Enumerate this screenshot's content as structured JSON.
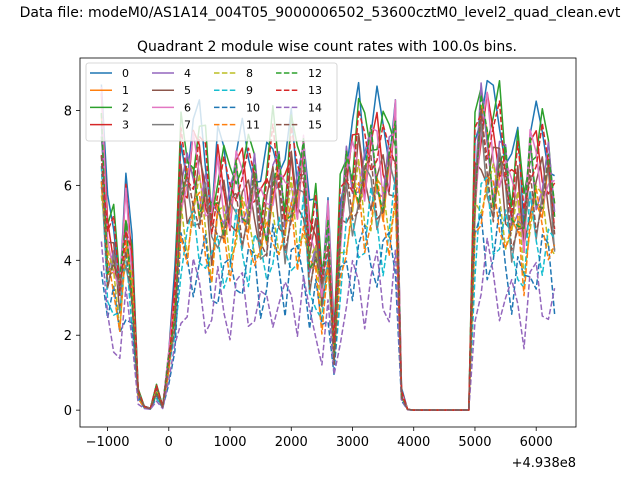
{
  "chart_data": {
    "type": "line",
    "suptitle": "Data file: modeM0/AS1A14_004T05_9000006502_53600cztM0_level2_quad_clean.evt",
    "title": "Quadrant 2 module wise count rates with 100.0s bins.",
    "xlabel": "",
    "ylabel": "",
    "offset_text": "+4.938e8",
    "xlim": [
      -1450,
      6650
    ],
    "ylim": [
      -0.45,
      9.4
    ],
    "xticks": [
      -1000,
      0,
      1000,
      2000,
      3000,
      4000,
      5000,
      6000
    ],
    "xtick_labels": [
      "−1000",
      "0",
      "1000",
      "2000",
      "3000",
      "4000",
      "5000",
      "6000"
    ],
    "yticks": [
      0,
      2,
      4,
      6,
      8
    ],
    "ytick_labels": [
      "0",
      "2",
      "4",
      "6",
      "8"
    ],
    "legend": {
      "placement": "top-left",
      "columns": 4
    },
    "x": [
      -1100,
      -1000,
      -900,
      -800,
      -700,
      -600,
      -500,
      -400,
      -300,
      -200,
      -100,
      0,
      100,
      200,
      300,
      400,
      500,
      600,
      700,
      800,
      900,
      1000,
      1100,
      1200,
      1300,
      1400,
      1500,
      1600,
      1700,
      1800,
      1900,
      2000,
      2100,
      2200,
      2300,
      2400,
      2500,
      2600,
      2700,
      2800,
      2900,
      3000,
      3100,
      3200,
      3300,
      3400,
      3500,
      3600,
      3700,
      3800,
      3900,
      4000,
      4100,
      4200,
      4300,
      4400,
      4500,
      4600,
      4700,
      4800,
      4900,
      5000,
      5100,
      5200,
      5300,
      5400,
      5500,
      5600,
      5700,
      5800,
      5900,
      6000,
      6100,
      6200,
      6300
    ],
    "base_profile": [
      8.2,
      4.8,
      4.7,
      3.5,
      5.6,
      4.0,
      0.5,
      0.1,
      0.05,
      0.6,
      0.1,
      1.5,
      3.2,
      6.8,
      6.6,
      7.0,
      7.0,
      6.6,
      5.4,
      6.5,
      6.2,
      5.9,
      6.7,
      6.5,
      6.3,
      6.6,
      5.6,
      6.0,
      7.0,
      6.7,
      5.8,
      7.0,
      6.3,
      7.2,
      4.7,
      5.2,
      3.5,
      5.3,
      1.8,
      5.4,
      6.8,
      6.8,
      7.5,
      7.0,
      7.5,
      7.3,
      6.9,
      7.1,
      7.9,
      0.5,
      0.02,
      0.0,
      0.0,
      0.0,
      0.0,
      0.0,
      0.0,
      0.0,
      0.0,
      0.0,
      0.0,
      6.8,
      8.4,
      8.0,
      7.3,
      7.6,
      6.9,
      5.9,
      6.6,
      5.2,
      7.3,
      6.9,
      6.9,
      6.9,
      5.8
    ],
    "series": [
      {
        "name": "0",
        "color": "#1f77b4",
        "style": "solid",
        "scale": 1.06
      },
      {
        "name": "1",
        "color": "#ff7f0e",
        "style": "solid",
        "scale": 0.86
      },
      {
        "name": "2",
        "color": "#2ca02c",
        "style": "solid",
        "scale": 1.03
      },
      {
        "name": "3",
        "color": "#d62728",
        "style": "solid",
        "scale": 0.95
      },
      {
        "name": "4",
        "color": "#9467bd",
        "style": "solid",
        "scale": 0.9
      },
      {
        "name": "5",
        "color": "#8c564b",
        "style": "solid",
        "scale": 0.85
      },
      {
        "name": "6",
        "color": "#e377c2",
        "style": "solid",
        "scale": 0.92
      },
      {
        "name": "7",
        "color": "#7f7f7f",
        "style": "solid",
        "scale": 0.8
      },
      {
        "name": "8",
        "color": "#bcbd22",
        "style": "dashed",
        "scale": 0.76
      },
      {
        "name": "9",
        "color": "#17becf",
        "style": "dashed",
        "scale": 0.66
      },
      {
        "name": "10",
        "color": "#1f77b4",
        "style": "dashed",
        "scale": 0.57
      },
      {
        "name": "11",
        "color": "#ff7f0e",
        "style": "dashed",
        "scale": 0.72
      },
      {
        "name": "12",
        "color": "#2ca02c",
        "style": "dashed",
        "scale": 0.88
      },
      {
        "name": "13",
        "color": "#d62728",
        "style": "dashed",
        "scale": 0.97
      },
      {
        "name": "14",
        "color": "#9467bd",
        "style": "dashed",
        "scale": 0.45
      },
      {
        "name": "15",
        "color": "#8c564b",
        "style": "dashed",
        "scale": 0.82
      }
    ]
  }
}
